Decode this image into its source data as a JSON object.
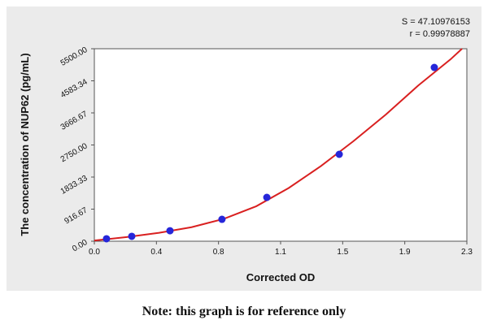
{
  "chart_data": {
    "type": "scatter",
    "x_label": "Corrected OD",
    "y_label": "The concentration of NUP62 (pg/mL)",
    "annotations": [
      "S = 47.10976153",
      "r = 0.99978887"
    ],
    "xlim": [
      0,
      2.3
    ],
    "ylim": [
      0,
      5500
    ],
    "xticks": [
      {
        "value": 0,
        "label": "0.0"
      },
      {
        "value": 0.3833,
        "label": "0.4"
      },
      {
        "value": 0.7667,
        "label": "0.8"
      },
      {
        "value": 1.15,
        "label": "1.1"
      },
      {
        "value": 1.5333,
        "label": "1.5"
      },
      {
        "value": 1.9167,
        "label": "1.9"
      },
      2.3
    ],
    "yticks": [
      {
        "value": 0,
        "label": "0.00"
      },
      916.67,
      1833.33,
      {
        "value": 2750,
        "label": "2750.00"
      },
      3666.67,
      4583.34,
      {
        "value": 5500,
        "label": "5500.00"
      }
    ],
    "series": [
      {
        "color": "#2626d9",
        "x": [
          0.075,
          0.231,
          0.467,
          0.788,
          1.065,
          1.512,
          2.099
        ],
        "values": [
          70,
          140,
          300,
          626,
          1253,
          2483,
          4966
        ]
      }
    ],
    "fit": {
      "color": "#d92020",
      "x": [
        0,
        0.2,
        0.4,
        0.6,
        0.8,
        1.0,
        1.2,
        1.4,
        1.6,
        1.8,
        2.0,
        2.2,
        2.27
      ],
      "values": [
        20,
        120,
        240,
        400,
        640,
        1000,
        1520,
        2150,
        2860,
        3620,
        4450,
        5200,
        5500
      ]
    }
  },
  "note": "Note: this graph is for reference only"
}
